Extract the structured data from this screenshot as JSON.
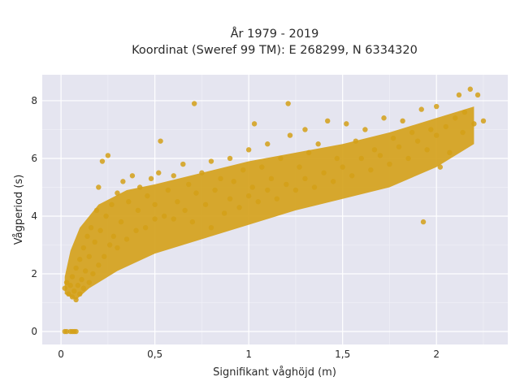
{
  "chart_data": {
    "type": "scatter",
    "title_lines": [
      "År 1979 - 2019",
      "Koordinat (Sweref 99 TM): E 268299, N 6334320"
    ],
    "xlabel": "Signifikant våghöjd (m)",
    "ylabel": "Vågperiod (s)",
    "xlim": [
      -0.1,
      2.38
    ],
    "ylim": [
      -0.45,
      8.9
    ],
    "xticks": [
      0,
      0.5,
      1,
      1.5,
      2
    ],
    "xtick_labels": [
      "0",
      "0,5",
      "1",
      "1,5",
      "2"
    ],
    "yticks": [
      0,
      2,
      4,
      6,
      8
    ],
    "ytick_labels": [
      "0",
      "2",
      "4",
      "6",
      "8"
    ],
    "grid": true,
    "marker_color": "#d4a017",
    "plot_background": "#e5e5f0",
    "points": [
      [
        0.02,
        0.0
      ],
      [
        0.03,
        0.0
      ],
      [
        0.05,
        0.0
      ],
      [
        0.06,
        0.0
      ],
      [
        0.07,
        0.0
      ],
      [
        0.08,
        0.0
      ],
      [
        0.02,
        1.5
      ],
      [
        0.03,
        1.7
      ],
      [
        0.04,
        1.3
      ],
      [
        0.05,
        1.6
      ],
      [
        0.06,
        1.2
      ],
      [
        0.06,
        1.9
      ],
      [
        0.07,
        1.4
      ],
      [
        0.08,
        1.1
      ],
      [
        0.08,
        2.2
      ],
      [
        0.09,
        1.6
      ],
      [
        0.1,
        1.3
      ],
      [
        0.1,
        2.5
      ],
      [
        0.11,
        1.8
      ],
      [
        0.12,
        2.9
      ],
      [
        0.12,
        1.5
      ],
      [
        0.13,
        2.1
      ],
      [
        0.14,
        3.3
      ],
      [
        0.15,
        1.7
      ],
      [
        0.15,
        2.6
      ],
      [
        0.16,
        3.6
      ],
      [
        0.17,
        2.0
      ],
      [
        0.18,
        3.1
      ],
      [
        0.19,
        4.2
      ],
      [
        0.2,
        2.3
      ],
      [
        0.2,
        5.0
      ],
      [
        0.21,
        3.5
      ],
      [
        0.22,
        5.9
      ],
      [
        0.23,
        2.6
      ],
      [
        0.24,
        4.0
      ],
      [
        0.25,
        6.1
      ],
      [
        0.26,
        3.0
      ],
      [
        0.27,
        4.4
      ],
      [
        0.28,
        3.3
      ],
      [
        0.3,
        4.8
      ],
      [
        0.3,
        2.9
      ],
      [
        0.32,
        3.8
      ],
      [
        0.33,
        5.2
      ],
      [
        0.35,
        3.2
      ],
      [
        0.36,
        4.5
      ],
      [
        0.38,
        5.4
      ],
      [
        0.4,
        3.5
      ],
      [
        0.41,
        4.2
      ],
      [
        0.42,
        5.0
      ],
      [
        0.45,
        3.6
      ],
      [
        0.46,
        4.7
      ],
      [
        0.48,
        5.3
      ],
      [
        0.5,
        3.9
      ],
      [
        0.5,
        4.4
      ],
      [
        0.52,
        5.5
      ],
      [
        0.53,
        6.6
      ],
      [
        0.55,
        4.0
      ],
      [
        0.57,
        4.9
      ],
      [
        0.6,
        3.9
      ],
      [
        0.6,
        5.4
      ],
      [
        0.62,
        4.5
      ],
      [
        0.65,
        5.8
      ],
      [
        0.66,
        4.2
      ],
      [
        0.68,
        5.1
      ],
      [
        0.7,
        3.8
      ],
      [
        0.71,
        7.9
      ],
      [
        0.72,
        4.8
      ],
      [
        0.75,
        5.5
      ],
      [
        0.77,
        4.4
      ],
      [
        0.8,
        5.9
      ],
      [
        0.8,
        3.6
      ],
      [
        0.82,
        4.9
      ],
      [
        0.85,
        5.3
      ],
      [
        0.87,
        4.1
      ],
      [
        0.9,
        6.0
      ],
      [
        0.9,
        4.6
      ],
      [
        0.92,
        5.2
      ],
      [
        0.95,
        4.3
      ],
      [
        0.97,
        5.6
      ],
      [
        1.0,
        4.7
      ],
      [
        1.0,
        6.3
      ],
      [
        1.02,
        5.0
      ],
      [
        1.03,
        7.2
      ],
      [
        1.05,
        4.5
      ],
      [
        1.07,
        5.7
      ],
      [
        1.1,
        4.9
      ],
      [
        1.1,
        6.5
      ],
      [
        1.12,
        5.3
      ],
      [
        1.15,
        4.6
      ],
      [
        1.17,
        6.0
      ],
      [
        1.2,
        5.1
      ],
      [
        1.21,
        7.9
      ],
      [
        1.22,
        6.8
      ],
      [
        1.25,
        4.9
      ],
      [
        1.27,
        5.7
      ],
      [
        1.3,
        5.3
      ],
      [
        1.3,
        7.0
      ],
      [
        1.32,
        6.2
      ],
      [
        1.35,
        5.0
      ],
      [
        1.37,
        6.5
      ],
      [
        1.4,
        5.5
      ],
      [
        1.42,
        7.3
      ],
      [
        1.45,
        5.2
      ],
      [
        1.47,
        6.0
      ],
      [
        1.5,
        5.7
      ],
      [
        1.52,
        7.2
      ],
      [
        1.55,
        5.4
      ],
      [
        1.57,
        6.6
      ],
      [
        1.6,
        6.0
      ],
      [
        1.62,
        7.0
      ],
      [
        1.65,
        5.6
      ],
      [
        1.67,
        6.3
      ],
      [
        1.7,
        6.1
      ],
      [
        1.72,
        7.4
      ],
      [
        1.75,
        5.8
      ],
      [
        1.77,
        6.7
      ],
      [
        1.8,
        6.4
      ],
      [
        1.82,
        7.3
      ],
      [
        1.85,
        6.0
      ],
      [
        1.87,
        6.9
      ],
      [
        1.9,
        6.6
      ],
      [
        1.92,
        7.7
      ],
      [
        1.93,
        3.8
      ],
      [
        1.95,
        6.3
      ],
      [
        1.97,
        7.0
      ],
      [
        2.0,
        6.8
      ],
      [
        2.0,
        7.8
      ],
      [
        2.02,
        5.7
      ],
      [
        2.05,
        7.1
      ],
      [
        2.07,
        6.2
      ],
      [
        2.1,
        7.4
      ],
      [
        2.12,
        8.2
      ],
      [
        2.14,
        6.9
      ],
      [
        2.15,
        7.6
      ],
      [
        2.18,
        8.4
      ],
      [
        2.2,
        7.2
      ],
      [
        2.22,
        8.2
      ],
      [
        2.25,
        7.3
      ]
    ]
  }
}
